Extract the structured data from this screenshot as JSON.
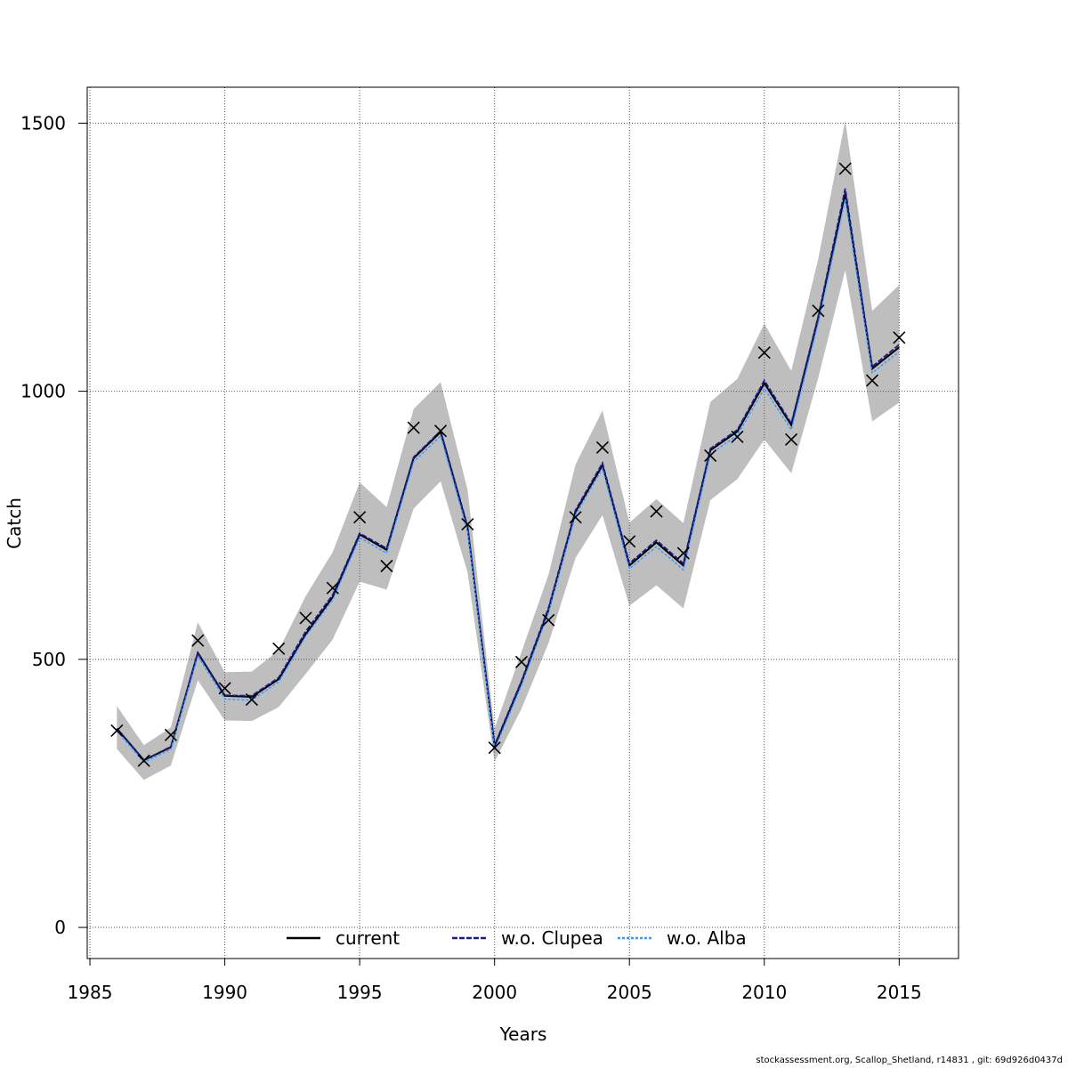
{
  "chart_data": {
    "type": "line",
    "xlabel": "Years",
    "ylabel": "Catch",
    "xlim": [
      1984.9,
      2017.2
    ],
    "ylim": [
      -58,
      1567
    ],
    "x_ticks": [
      1985,
      1990,
      1995,
      2000,
      2005,
      2010,
      2015
    ],
    "y_ticks": [
      0,
      500,
      1000,
      1500
    ],
    "grid": true,
    "legend_position": "bottom-center",
    "x": [
      1986,
      1987,
      1988,
      1989,
      1990,
      1991,
      1992,
      1993,
      1994,
      1995,
      1996,
      1997,
      1998,
      1999,
      2000,
      2001,
      2002,
      2003,
      2004,
      2005,
      2006,
      2007,
      2008,
      2009,
      2010,
      2011,
      2012,
      2013,
      2014,
      2015
    ],
    "observed": {
      "marker": "x",
      "values": [
        367,
        311,
        359,
        535,
        446,
        425,
        520,
        577,
        633,
        765,
        674,
        932,
        926,
        752,
        335,
        495,
        573,
        765,
        895,
        720,
        776,
        698,
        880,
        915,
        1072,
        910,
        1150,
        1415,
        1020,
        1100
      ]
    },
    "confidence_band": {
      "color": "#bebebe",
      "upper": [
        413,
        340,
        373,
        569,
        476,
        477,
        517,
        618,
        700,
        830,
        784,
        967,
        1017,
        816,
        371,
        514,
        658,
        863,
        964,
        755,
        799,
        754,
        980,
        1023,
        1126,
        1038,
        1247,
        1505,
        1150,
        1198
      ],
      "lower": [
        333,
        275,
        302,
        461,
        386,
        385,
        411,
        473,
        537,
        645,
        630,
        781,
        832,
        662,
        309,
        408,
        530,
        689,
        769,
        600,
        638,
        595,
        797,
        836,
        910,
        847,
        1025,
        1226,
        944,
        979
      ]
    },
    "series": [
      {
        "name": "current",
        "color": "#000000",
        "dash": "",
        "values": [
          371,
          312,
          336,
          512,
          432,
          430,
          463,
          547,
          616,
          733,
          704,
          875,
          924,
          745,
          338,
          457,
          592,
          775,
          862,
          675,
          718,
          675,
          890,
          925,
          1015,
          937,
          1136,
          1369,
          1042,
          1082
        ]
      },
      {
        "name": "w.o. Clupea",
        "color": "#1a1a8c",
        "dash": "6 2",
        "values": [
          370,
          312,
          337,
          513,
          433,
          432,
          466,
          552,
          620,
          735,
          707,
          877,
          926,
          748,
          340,
          460,
          596,
          778,
          866,
          679,
          722,
          679,
          893,
          928,
          1020,
          940,
          1140,
          1378,
          1046,
          1087
        ]
      },
      {
        "name": "w.o. Alba",
        "color": "#3399ff",
        "dash": "3 2",
        "values": [
          367,
          308,
          332,
          506,
          426,
          424,
          458,
          543,
          611,
          727,
          698,
          868,
          917,
          739,
          332,
          452,
          587,
          769,
          856,
          669,
          710,
          667,
          883,
          918,
          1005,
          928,
          1128,
          1358,
          1034,
          1074
        ]
      }
    ]
  },
  "footer": "stockassessment.org, Scallop_Shetland, r14831 , git: 69d926d0437d"
}
